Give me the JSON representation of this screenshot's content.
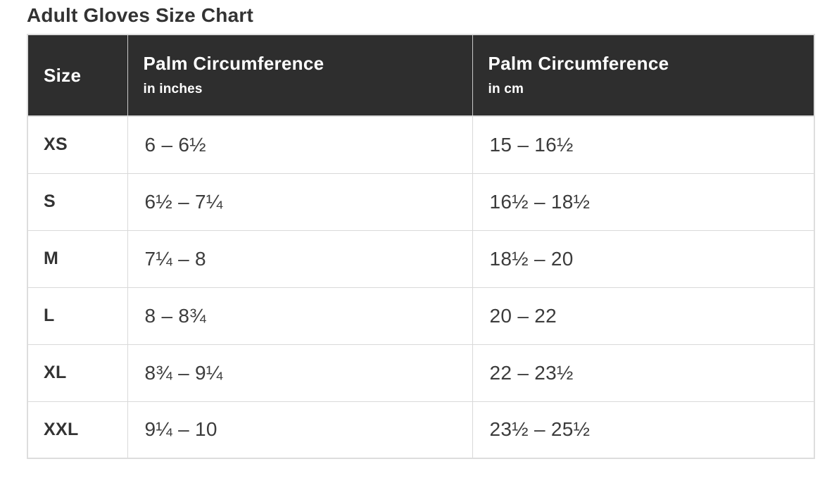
{
  "page": {
    "title": "Adult Gloves Size Chart"
  },
  "colors": {
    "header_background": "#2e2e2e",
    "header_text": "#ffffff",
    "body_text": "#333333",
    "value_text": "#3c3c3c",
    "border": "#d9d9d9",
    "outer_border": "#dddddd",
    "page_background": "#ffffff"
  },
  "table": {
    "header": {
      "size_label": "Size",
      "col_inches": {
        "title": "Palm Circumference",
        "subtitle": "in inches"
      },
      "col_cm": {
        "title": "Palm Circumference",
        "subtitle": "in cm"
      }
    },
    "rows": [
      {
        "size": "XS",
        "inches": "6 – 6½",
        "cm": "15 – 16½"
      },
      {
        "size": "S",
        "inches": "6½ – 7¼",
        "cm": "16½ – 18½"
      },
      {
        "size": "M",
        "inches": "7¼ – 8",
        "cm": "18½ – 20"
      },
      {
        "size": "L",
        "inches": "8 – 8¾",
        "cm": "20 – 22"
      },
      {
        "size": "XL",
        "inches": "8¾ – 9¼",
        "cm": "22 – 23½"
      },
      {
        "size": "XXL",
        "inches": "9¼ – 10",
        "cm": "23½ – 25½"
      }
    ]
  },
  "chart_data": {
    "type": "table",
    "title": "Adult Gloves Size Chart",
    "columns": [
      "Size",
      "Palm Circumference in inches",
      "Palm Circumference in cm"
    ],
    "rows": [
      [
        "XS",
        "6 – 6½",
        "15 – 16½"
      ],
      [
        "S",
        "6½ – 7¼",
        "16½ – 18½"
      ],
      [
        "M",
        "7¼ – 8",
        "18½ – 20"
      ],
      [
        "L",
        "8 – 8¾",
        "20 – 22"
      ],
      [
        "XL",
        "8¾ – 9¼",
        "22 – 23½"
      ],
      [
        "XXL",
        "9¼ – 10",
        "23½ – 25½"
      ]
    ]
  }
}
